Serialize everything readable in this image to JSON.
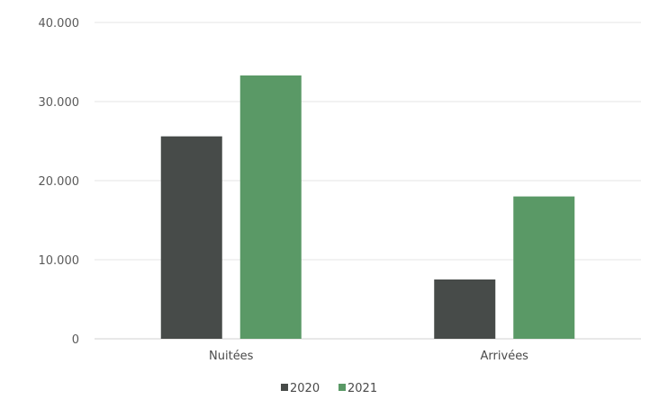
{
  "chart_data": {
    "type": "bar",
    "categories": [
      "Nuitées",
      "Arrivées"
    ],
    "series": [
      {
        "name": "2020",
        "values": [
          25600,
          7500
        ],
        "color": "#474b49"
      },
      {
        "name": "2021",
        "values": [
          33300,
          18000
        ],
        "color": "#5a9966"
      }
    ],
    "y_ticks": [
      "0",
      "10.000",
      "20.000",
      "30.000",
      "40.000"
    ],
    "ylim": [
      0,
      40000
    ],
    "grid": true,
    "legend_position": "bottom"
  }
}
